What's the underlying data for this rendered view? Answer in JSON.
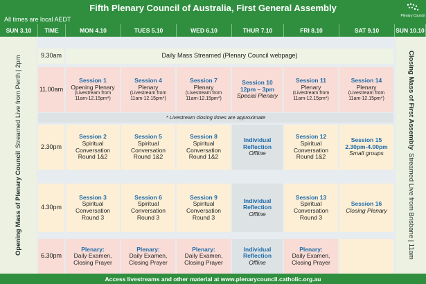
{
  "header": {
    "title": "Fifth Plenary Council of Australia, First General Assembly",
    "subtitle": "All times are local AEDT",
    "logo": "Plenary Council"
  },
  "columns": [
    "SUN 3.10",
    "TIME",
    "MON 4.10",
    "TUES 5.10",
    "WED 6.10",
    "THUR 7.10",
    "FRI 8.10",
    "SAT 9.10",
    "SUN 10.10"
  ],
  "left_banner": {
    "bold": "Opening Mass of Plenary Council",
    "rest": "Streamed Live from Perth | 2pm"
  },
  "right_banner": {
    "bold": "Closing Mass of First Assembly",
    "rest": "Streamed Live from Brisbane | 11am"
  },
  "rows": [
    {
      "time": "9.30am",
      "span": "Daily Mass Streamed (Plenary Council webpage)"
    },
    {
      "time": "11.00am",
      "cells": [
        {
          "title": "Session 1",
          "text": [
            "Opening Plenary"
          ],
          "small": [
            "(Livestream from",
            "11am-12.15pm*)"
          ]
        },
        {
          "title": "Session 4",
          "text": [
            "Plenary"
          ],
          "small": [
            "(Livestream from",
            "11am-12.15pm*)"
          ]
        },
        {
          "title": "Session 7",
          "text": [
            "Plenary"
          ],
          "small": [
            "(Livestream from",
            "11am-12.15pm*)"
          ]
        },
        {
          "title": "Session 10",
          "bold": "12pm – 3pm",
          "italic": "Special Plenary"
        },
        {
          "title": "Session 11",
          "text": [
            "Plenary"
          ],
          "small": [
            "(Livestream from",
            "11am-12.15pm*)"
          ]
        },
        {
          "title": "Session 14",
          "text": [
            "Plenary"
          ],
          "small": [
            "(Livestream from",
            "11am-12.15pm*)"
          ]
        }
      ]
    },
    {
      "note": "* Livestream closing times are approximate"
    },
    {
      "time": "2.30pm",
      "cells": [
        {
          "title": "Session 2",
          "text": [
            "Spiritual",
            "Conversation",
            "Round 1&2"
          ]
        },
        {
          "title": "Session 5",
          "text": [
            "Spiritual",
            "Conversation",
            "Round 1&2"
          ]
        },
        {
          "title": "Session 8",
          "text": [
            "Spiritual",
            "Conversation",
            "Round 1&2"
          ]
        },
        {
          "title": "Individual Reflection",
          "italic": "Offline"
        },
        {
          "title": "Session 12",
          "text": [
            "Spiritual",
            "Conversation",
            "Round 1&2"
          ]
        },
        {
          "title": "Session 15",
          "bold": "2.30pm-4.00pm",
          "italic": "Small groups"
        }
      ]
    },
    {
      "time": "4.30pm",
      "cells": [
        {
          "title": "Session 3",
          "text": [
            "Spiritual",
            "Conversation",
            "Round 3"
          ]
        },
        {
          "title": "Session 6",
          "text": [
            "Spiritual",
            "Conversation",
            "Round 3"
          ]
        },
        {
          "title": "Session 9",
          "text": [
            "Spiritual",
            "Conversation",
            "Round 3"
          ]
        },
        {
          "title": "Individual Reflection",
          "italic": "Offline"
        },
        {
          "title": "Session 13",
          "text": [
            "Spiritual",
            "Conversation",
            "Round 3"
          ]
        },
        {
          "title": "Session 16",
          "italic": "Closing Plenary"
        }
      ]
    },
    {
      "time": "6.30pm",
      "cells": [
        {
          "title": "Plenary:",
          "text": [
            "Daily Examen,",
            "Closing Prayer"
          ]
        },
        {
          "title": "Plenary:",
          "text": [
            "Daily Examen,",
            "Closing Prayer"
          ]
        },
        {
          "title": "Plenary:",
          "text": [
            "Daily Examen,",
            "Closing Prayer"
          ]
        },
        {
          "title": "Individual Reflection",
          "italic": "Offline"
        },
        {
          "title": "Plenary:",
          "text": [
            "Daily Examen,",
            "Closing Prayer"
          ]
        },
        null
      ]
    }
  ],
  "footer": "Access livestreams and other material at www.plenarycouncil.catholic.org.au"
}
